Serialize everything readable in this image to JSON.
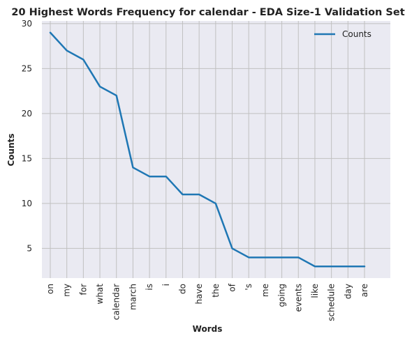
{
  "chart_data": {
    "type": "line",
    "title": "20 Highest Words Frequency for calendar - EDA Size-1 Validation Set",
    "xlabel": "Words",
    "ylabel": "Counts",
    "categories": [
      "on",
      "my",
      "for",
      "what",
      "calendar",
      "march",
      "is",
      "i",
      "do",
      "have",
      "the",
      "of",
      "'s",
      "me",
      "going",
      "events",
      "like",
      "schedule",
      "day",
      "are"
    ],
    "series": [
      {
        "name": "Counts",
        "values": [
          29,
          27,
          26,
          23,
          22,
          14,
          13,
          13,
          11,
          11,
          10,
          5,
          4,
          4,
          4,
          4,
          3,
          3,
          3,
          3
        ],
        "color": "#1f77b4"
      }
    ],
    "ylim": [
      1.7,
      30.3
    ],
    "yticks": [
      5,
      10,
      15,
      20,
      25,
      30
    ],
    "ytick_labels": [
      "5",
      "10",
      "15",
      "20",
      "25",
      "30"
    ],
    "grid": true,
    "legend_position": "top-right",
    "background_color": "#eaeaf2",
    "grid_color": "#c0c0c0"
  }
}
